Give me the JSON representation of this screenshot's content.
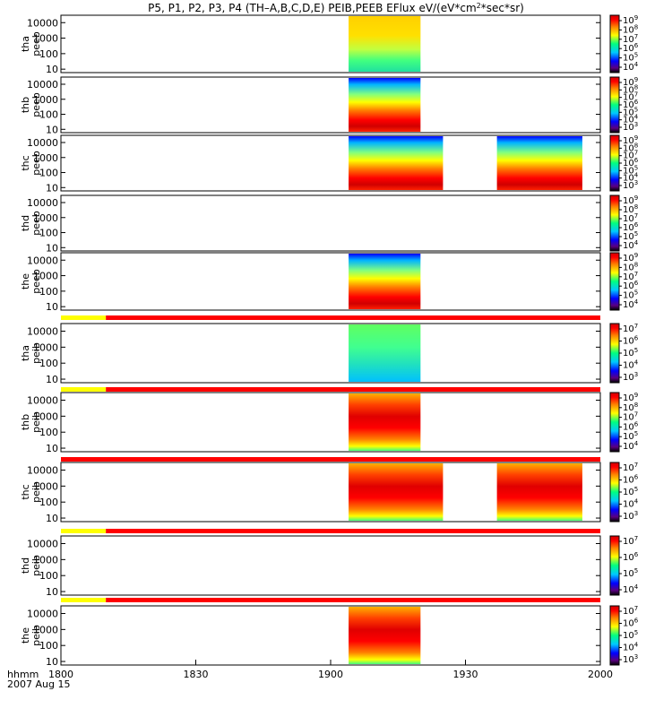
{
  "chart_data": {
    "type": "heatmap",
    "title_parts": [
      "P5, P1, P2, P3, P4 (TH–A,B,C,D,E) PEIB,PEEB EFlux eV/(eV*cm",
      "2",
      "*sec*sr)"
    ],
    "x_axis": {
      "label_line1": "hhmm",
      "label_line2": "2007 Aug 15",
      "range": [
        "18:00",
        "20:00"
      ],
      "ticks": [
        "1800",
        "1830",
        "1900",
        "1930",
        "2000"
      ]
    },
    "y_scale": "log",
    "y_ticks": [
      "10",
      "100",
      "1000",
      "10000"
    ],
    "panels": [
      {
        "probe": "tha",
        "product": "peeb",
        "colorbar_labels": [
          "10",
          "10",
          "10",
          "10",
          "10",
          "10"
        ],
        "colorbar_exponents": [
          "4",
          "5",
          "6",
          "7",
          "8",
          "9"
        ],
        "intervals": [
          [
            "19:04",
            "19:20"
          ]
        ]
      },
      {
        "probe": "thb",
        "product": "peeb",
        "colorbar_labels": [
          "10",
          "10",
          "10",
          "10",
          "10",
          "10",
          "10"
        ],
        "colorbar_exponents": [
          "3",
          "4",
          "5",
          "6",
          "7",
          "8",
          "9"
        ],
        "intervals": [
          [
            "19:04",
            "19:20"
          ]
        ]
      },
      {
        "probe": "thc",
        "product": "peeb",
        "colorbar_labels": [
          "10",
          "10",
          "10",
          "10",
          "10",
          "10",
          "10"
        ],
        "colorbar_exponents": [
          "3",
          "4",
          "5",
          "6",
          "7",
          "8",
          "9"
        ],
        "intervals": [
          [
            "19:04",
            "19:25"
          ],
          [
            "19:37",
            "19:56"
          ]
        ]
      },
      {
        "probe": "thd",
        "product": "peeb",
        "colorbar_labels": [
          "10",
          "10",
          "10",
          "10",
          "10",
          "10"
        ],
        "colorbar_exponents": [
          "4",
          "5",
          "6",
          "7",
          "8",
          "9"
        ],
        "intervals": []
      },
      {
        "probe": "the",
        "product": "peeb",
        "colorbar_labels": [
          "10",
          "10",
          "10",
          "10",
          "10",
          "10"
        ],
        "colorbar_exponents": [
          "4",
          "5",
          "6",
          "7",
          "8",
          "9"
        ],
        "intervals": [
          [
            "19:04",
            "19:20"
          ]
        ]
      },
      {
        "probe": "tha",
        "product": "peib",
        "colorbar_labels": [
          "10",
          "10",
          "10",
          "10",
          "10"
        ],
        "colorbar_exponents": [
          "3",
          "4",
          "5",
          "6",
          "7"
        ],
        "intervals": [
          [
            "19:04",
            "19:20"
          ]
        ]
      },
      {
        "probe": "thb",
        "product": "peib",
        "colorbar_labels": [
          "10",
          "10",
          "10",
          "10",
          "10",
          "10"
        ],
        "colorbar_exponents": [
          "4",
          "5",
          "6",
          "7",
          "8",
          "9"
        ],
        "intervals": [
          [
            "19:04",
            "19:20"
          ]
        ]
      },
      {
        "probe": "thc",
        "product": "peib",
        "colorbar_labels": [
          "10",
          "10",
          "10",
          "10",
          "10"
        ],
        "colorbar_exponents": [
          "3",
          "4",
          "5",
          "6",
          "7"
        ],
        "intervals": [
          [
            "19:04",
            "19:25"
          ],
          [
            "19:37",
            "19:56"
          ]
        ]
      },
      {
        "probe": "thd",
        "product": "peib",
        "colorbar_labels": [
          "10",
          "10",
          "10",
          "10"
        ],
        "colorbar_exponents": [
          "4",
          "5",
          "6",
          "7"
        ],
        "intervals": []
      },
      {
        "probe": "the",
        "product": "peib",
        "colorbar_labels": [
          "10",
          "10",
          "10",
          "10",
          "10"
        ],
        "colorbar_exponents": [
          "3",
          "4",
          "5",
          "6",
          "7"
        ],
        "intervals": [
          [
            "19:04",
            "19:20"
          ]
        ]
      }
    ],
    "flag_bars": [
      {
        "after_panel": 5,
        "yellow_until": "18:10",
        "red_rest": true
      },
      {
        "after_panel": 6,
        "yellow_until": "18:10",
        "red_rest": true
      },
      {
        "after_panel": 7,
        "yellow_until": "18:00",
        "red_rest": true
      },
      {
        "after_panel": 8,
        "yellow_until": "18:10",
        "red_rest": true
      },
      {
        "after_panel": 9,
        "yellow_until": "18:10",
        "red_rest": true
      }
    ],
    "colors": {
      "flag_yellow": "#ffff00",
      "flag_red": "#ff0000"
    },
    "grid": false,
    "legend": "colorbar-right"
  }
}
